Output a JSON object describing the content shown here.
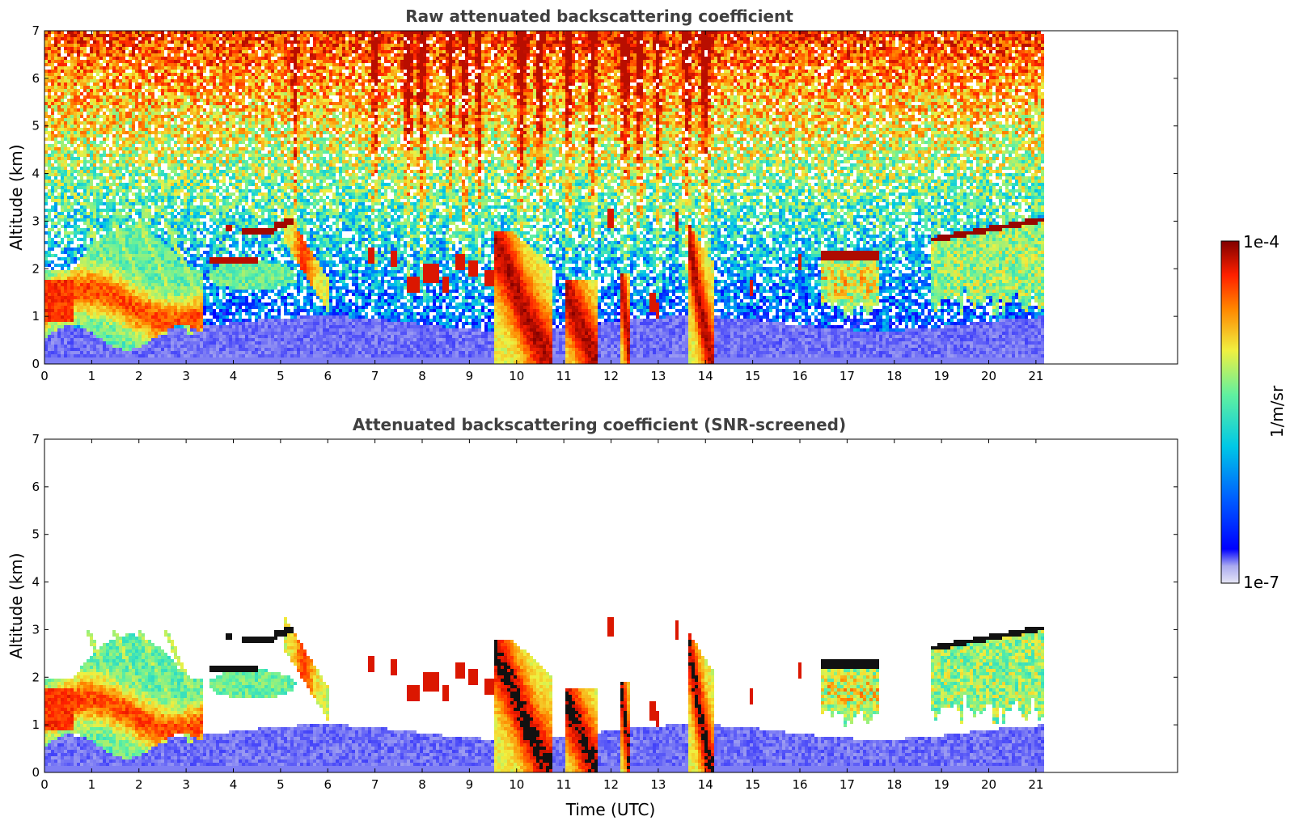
{
  "chart_data": [
    {
      "type": "heatmap",
      "title": "Raw attenuated backscattering coefficient",
      "xlabel": "",
      "ylabel": "Altitude (km)",
      "xlim": [
        0,
        24
      ],
      "ylim": [
        0,
        7
      ],
      "data_xrange": [
        0,
        21.2
      ],
      "x_ticks": [
        "0",
        "1",
        "2",
        "3",
        "4",
        "5",
        "6",
        "7",
        "8",
        "9",
        "10",
        "11",
        "12",
        "13",
        "14",
        "15",
        "16",
        "17",
        "18",
        "19",
        "20",
        "21"
      ],
      "y_ticks": [
        "0",
        "1",
        "2",
        "3",
        "4",
        "5",
        "6",
        "7"
      ],
      "features": [
        {
          "kind": "aerosol-layer",
          "x": [
            0,
            3.3
          ],
          "y": [
            0.4,
            2.9
          ],
          "level": "high"
        },
        {
          "kind": "cloud-layer",
          "x": [
            4.2,
            4.8
          ],
          "y": [
            2.7,
            2.9
          ],
          "level": "very-high"
        },
        {
          "kind": "cloud-layer",
          "x": [
            3.5,
            4.5
          ],
          "y": [
            2.05,
            2.25
          ],
          "level": "very-high"
        },
        {
          "kind": "cloud-layer",
          "x": [
            4.8,
            5.3
          ],
          "y": [
            2.8,
            3.05
          ],
          "level": "very-high"
        },
        {
          "kind": "precipitation",
          "x": [
            9.5,
            10.7
          ],
          "y": [
            0,
            2.8
          ],
          "level": "very-high"
        },
        {
          "kind": "precipitation",
          "x": [
            11.0,
            11.6
          ],
          "y": [
            0,
            1.8
          ],
          "level": "very-high"
        },
        {
          "kind": "precipitation",
          "x": [
            12.2,
            12.4
          ],
          "y": [
            0,
            1.8
          ],
          "level": "very-high"
        },
        {
          "kind": "precipitation",
          "x": [
            13.6,
            14.1
          ],
          "y": [
            0,
            2.9
          ],
          "level": "very-high"
        },
        {
          "kind": "cloud-layer",
          "x": [
            16.5,
            17.6
          ],
          "y": [
            0.7,
            2.4
          ],
          "level": "high"
        },
        {
          "kind": "cloud-layer",
          "x": [
            18.8,
            21.2
          ],
          "y": [
            1.0,
            3.0
          ],
          "level": "high"
        }
      ]
    },
    {
      "type": "heatmap",
      "title": "Attenuated backscattering coefficient (SNR-screened)",
      "xlabel": "Time (UTC)",
      "ylabel": "Altitude (km)",
      "xlim": [
        0,
        24
      ],
      "ylim": [
        0,
        7
      ],
      "data_xrange": [
        0,
        21.2
      ],
      "x_ticks": [
        "0",
        "1",
        "2",
        "3",
        "4",
        "5",
        "6",
        "7",
        "8",
        "9",
        "10",
        "11",
        "12",
        "13",
        "14",
        "15",
        "16",
        "17",
        "18",
        "19",
        "20",
        "21"
      ],
      "y_ticks": [
        "0",
        "1",
        "2",
        "3",
        "4",
        "5",
        "6",
        "7"
      ]
    }
  ],
  "colorbar": {
    "label": "1/m/sr",
    "min_label": "1e-7",
    "max_label": "1e-4",
    "scale": "log",
    "colors": [
      "#e6e6f5",
      "#aaaaf0",
      "#0000ff",
      "#0060ff",
      "#00c8e6",
      "#60f0a0",
      "#f0f040",
      "#ff8800",
      "#ff2000",
      "#800000"
    ]
  }
}
